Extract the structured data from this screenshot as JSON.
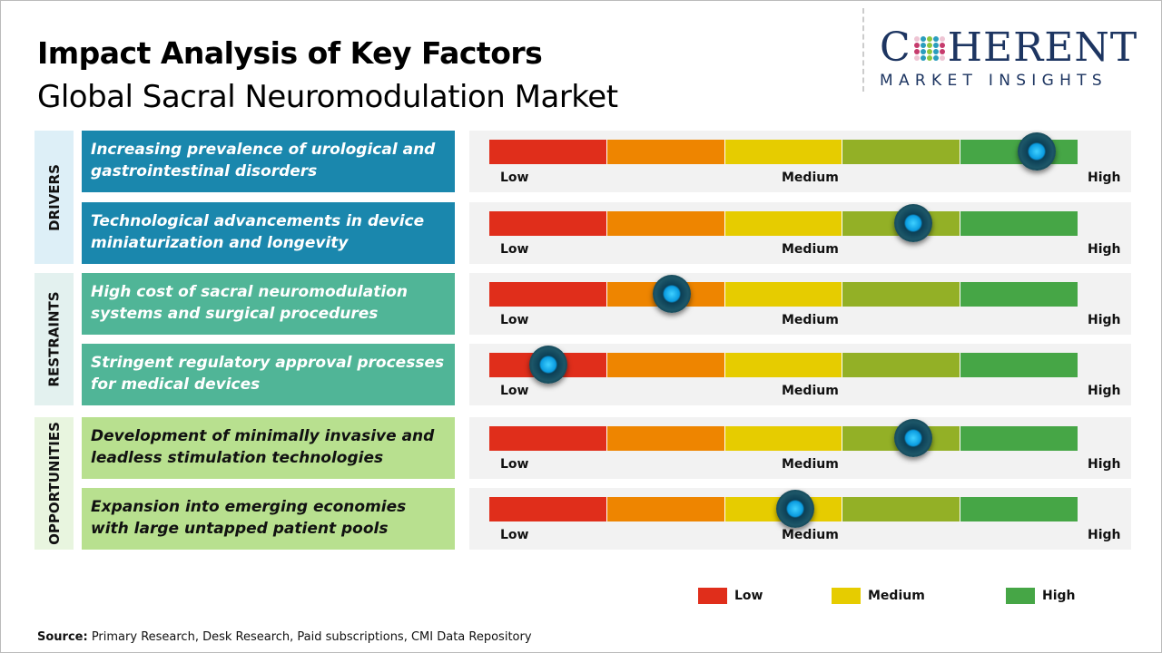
{
  "header": {
    "title": "Impact Analysis of Key Factors",
    "subtitle": "Global Sacral Neuromodulation Market"
  },
  "logo": {
    "main_left": "C",
    "main_right": "HERENT",
    "sub": "MARKET INSIGHTS"
  },
  "colors": {
    "low": "#e02e1b",
    "low_mid": "#ee8500",
    "medium": "#e6cc00",
    "mid_high": "#93b026",
    "high": "#46a646",
    "drivers": "#1a87ad",
    "restraints": "#50b597",
    "opportunities": "#b8e08f"
  },
  "categories": [
    {
      "label": "DRIVERS",
      "bg": "#ddeff7"
    },
    {
      "label": "RESTRAINTS",
      "bg": "#e3f1ef"
    },
    {
      "label": "OPPORTUNITIES",
      "bg": "#e8f5df"
    }
  ],
  "scale_labels": {
    "low": "Low",
    "medium": "Medium",
    "high": "High"
  },
  "factors": [
    {
      "category": "drivers",
      "text": "Increasing prevalence of urological and gastrointestinal disorders",
      "impact": 0.93
    },
    {
      "category": "drivers",
      "text": "Technological advancements in device miniaturization and longevity",
      "impact": 0.72
    },
    {
      "category": "restraints",
      "text": "High cost of sacral neuromodulation systems and surgical procedures",
      "impact": 0.31
    },
    {
      "category": "restraints",
      "text": "Stringent regulatory approval processes for medical devices",
      "impact": 0.1
    },
    {
      "category": "opportunities",
      "text": "Development of minimally invasive and leadless stimulation technologies",
      "impact": 0.72
    },
    {
      "category": "opportunities",
      "text": "Expansion into emerging economies with large untapped patient pools",
      "impact": 0.52
    }
  ],
  "legend": [
    {
      "label": "Low",
      "color": "#e02e1b"
    },
    {
      "label": "Medium",
      "color": "#e6cc00"
    },
    {
      "label": "High",
      "color": "#46a646"
    }
  ],
  "source": {
    "label": "Source:",
    "text": " Primary Research, Desk Research, Paid subscriptions, CMI Data Repository"
  }
}
